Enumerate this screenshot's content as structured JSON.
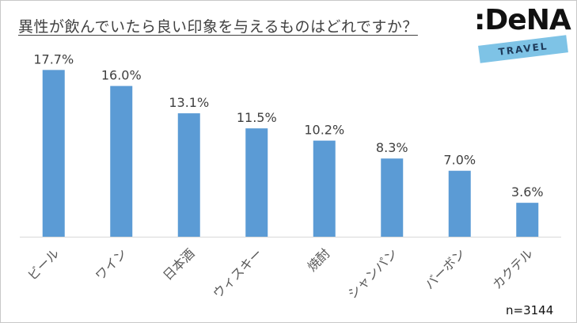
{
  "chart_data": {
    "type": "bar",
    "title": "異性が飲んでいたら良い印象を与えるものはどれですか？",
    "categories": [
      "ビール",
      "ワイン",
      "日本酒",
      "ウィスキー",
      "焼酎",
      "シャンパン",
      "バーボン",
      "カクテル"
    ],
    "values": [
      17.7,
      16.0,
      13.1,
      11.5,
      10.2,
      8.3,
      7.0,
      3.6
    ],
    "value_labels": [
      "17.7%",
      "16.0%",
      "13.1%",
      "11.5%",
      "10.2%",
      "8.3%",
      "7.0%",
      "3.6%"
    ],
    "ylim": [
      0,
      20
    ],
    "grid": false,
    "bar_color": "#5b9bd5"
  },
  "logo": {
    "main": ":DeNA",
    "sub": "TRAVEL"
  },
  "sample_note": "n=3144"
}
